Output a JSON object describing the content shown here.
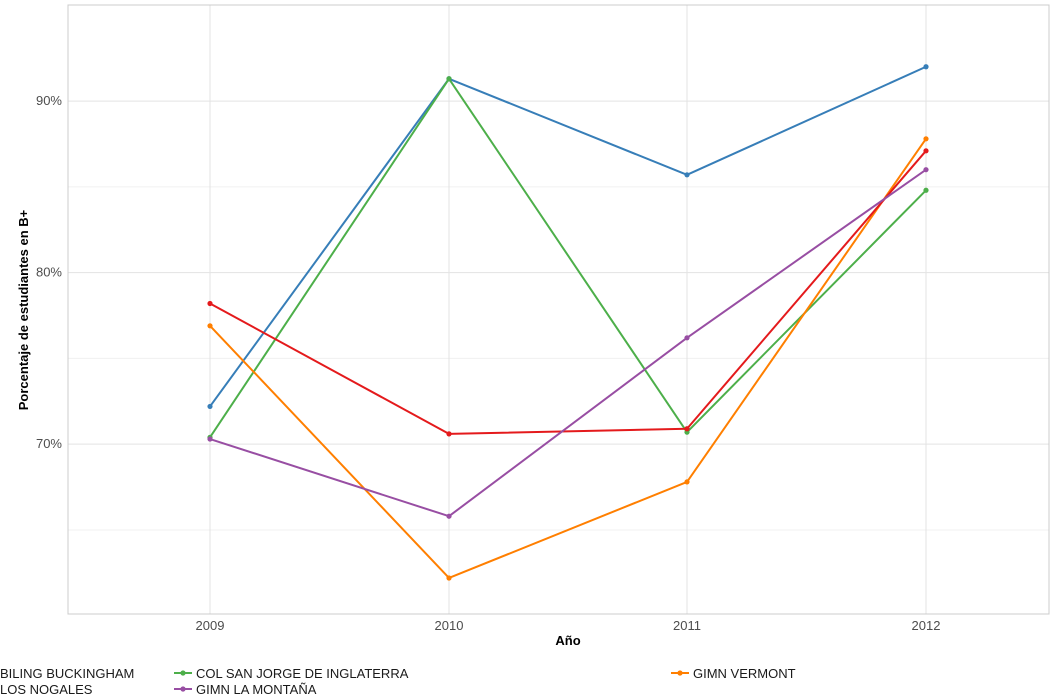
{
  "chart_data": {
    "type": "line",
    "title": "",
    "xlabel": "Año",
    "ylabel": "Porcentaje de estudiantes en B+",
    "categories": [
      "2009",
      "2010",
      "2011",
      "2012"
    ],
    "ylim": [
      60.1,
      95.6
    ],
    "y_ticks": [
      70,
      80,
      90
    ],
    "y_tick_labels": [
      "70%",
      "80%",
      "90%"
    ],
    "grid": true,
    "legend_position": "bottom",
    "series": [
      {
        "name": "BILING BUCKINGHAM",
        "color": "#377EB8",
        "values": [
          72.2,
          91.3,
          85.7,
          92.0
        ]
      },
      {
        "name": "COL SAN JORGE DE INGLATERRA",
        "color": "#4DAF4A",
        "values": [
          70.4,
          91.3,
          70.7,
          84.8
        ]
      },
      {
        "name": "GIMN VERMONT",
        "color": "#FF7F00",
        "values": [
          76.9,
          62.2,
          67.8,
          87.8
        ]
      },
      {
        "name": "LOS NOGALES",
        "color": "#E41A1C",
        "values": [
          78.2,
          70.6,
          70.9,
          87.1
        ]
      },
      {
        "name": "GIMN LA MONTAÑA",
        "color": "#984EA3",
        "values": [
          70.3,
          65.8,
          76.2,
          86.0
        ]
      }
    ]
  }
}
